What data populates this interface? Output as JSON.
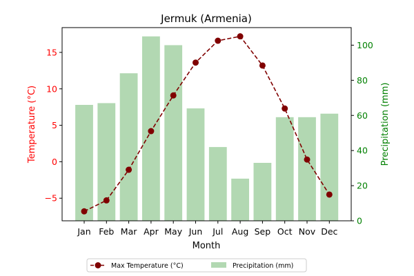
{
  "chart_data": {
    "type": "bar+line",
    "title": "Jermuk (Armenia)",
    "xlabel": "Month",
    "categories": [
      "Jan",
      "Feb",
      "Mar",
      "Apr",
      "May",
      "Jun",
      "Jul",
      "Aug",
      "Sep",
      "Oct",
      "Nov",
      "Dec"
    ],
    "left_axis": {
      "label": "Temperature (°C)",
      "ylim": [
        -8.1,
        18.4
      ],
      "ticks": [
        -5,
        0,
        5,
        10,
        15
      ],
      "color": "#ff0000"
    },
    "right_axis": {
      "label": "Precipitation (mm)",
      "ylim": [
        0,
        110
      ],
      "ticks": [
        0,
        20,
        40,
        60,
        80,
        100
      ],
      "color": "#008000"
    },
    "series": [
      {
        "name": "Max Temperature (°C)",
        "type": "line",
        "axis": "left",
        "color": "#800000",
        "values": [
          -6.8,
          -5.3,
          -1.1,
          4.2,
          9.1,
          13.6,
          16.6,
          17.2,
          13.2,
          7.3,
          0.3,
          -4.5
        ]
      },
      {
        "name": "Precipitation (mm)",
        "type": "bar",
        "axis": "right",
        "color": "#b2d8b2",
        "values": [
          66,
          67,
          84,
          105,
          100,
          64,
          42,
          24,
          33,
          59,
          59,
          61
        ]
      }
    ],
    "legend": {
      "placement": "bottom-center"
    }
  }
}
